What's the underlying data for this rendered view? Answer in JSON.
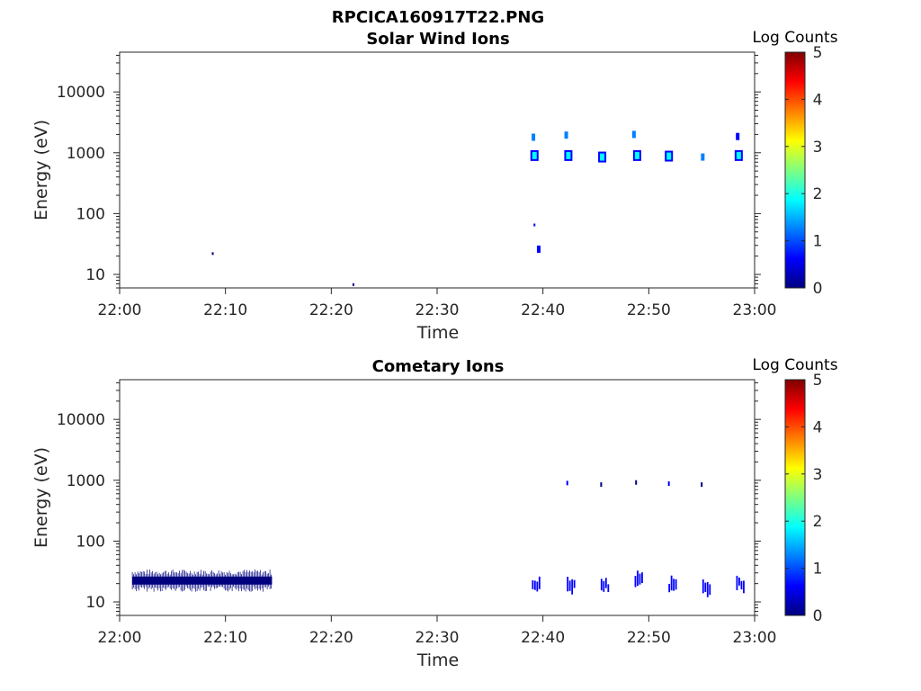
{
  "figure_title": "RPCICA160917T22.PNG",
  "colors": {
    "colormap": [
      "#00007f",
      "#0000ff",
      "#007fff",
      "#00ffff",
      "#7fff7f",
      "#ffff00",
      "#ff7f00",
      "#ff0000",
      "#7f0000"
    ],
    "axes": "#262626"
  },
  "chart_data": [
    {
      "type": "heatmap",
      "title": "Solar Wind Ions",
      "xlabel": "Time",
      "ylabel": "Energy (eV)",
      "xlim": [
        "22:00",
        "23:00"
      ],
      "x_ticks": [
        "22:00",
        "22:10",
        "22:20",
        "22:30",
        "22:40",
        "22:50",
        "23:00"
      ],
      "y_scale": "log",
      "ylim": [
        6,
        45000
      ],
      "y_ticks": [
        "10",
        "100",
        "1000",
        "10000"
      ],
      "colorbar": {
        "title": "Log Counts",
        "range": [
          0,
          5
        ],
        "ticks": [
          "0",
          "1",
          "2",
          "3",
          "4",
          "5"
        ]
      },
      "grid": false,
      "blobs": [
        {
          "t": 22.09,
          "e": 6.8,
          "log_counts": 0.2
        },
        {
          "t": 8.8,
          "e": 22,
          "log_counts": 0.3
        },
        {
          "t": 39.1,
          "e": 1800,
          "log_counts": 1.0
        },
        {
          "t": 39.2,
          "e": 900,
          "log_counts": 1.8
        },
        {
          "t": 39.6,
          "e": 26,
          "log_counts": 0.9
        },
        {
          "t": 39.2,
          "e": 65,
          "log_counts": 0.5
        },
        {
          "t": 42.2,
          "e": 1950,
          "log_counts": 1.0
        },
        {
          "t": 42.4,
          "e": 900,
          "log_counts": 1.8
        },
        {
          "t": 45.6,
          "e": 850,
          "log_counts": 1.6
        },
        {
          "t": 48.6,
          "e": 2000,
          "log_counts": 1.0
        },
        {
          "t": 48.9,
          "e": 900,
          "log_counts": 1.8
        },
        {
          "t": 51.9,
          "e": 880,
          "log_counts": 1.6
        },
        {
          "t": 55.1,
          "e": 850,
          "log_counts": 1.2
        },
        {
          "t": 58.4,
          "e": 1850,
          "log_counts": 0.9
        },
        {
          "t": 58.5,
          "e": 900,
          "log_counts": 1.6
        }
      ]
    },
    {
      "type": "heatmap",
      "title": "Cometary Ions",
      "xlabel": "Time",
      "ylabel": "Energy (eV)",
      "xlim": [
        "22:00",
        "23:00"
      ],
      "x_ticks": [
        "22:00",
        "22:10",
        "22:20",
        "22:30",
        "22:40",
        "22:50",
        "23:00"
      ],
      "y_scale": "log",
      "ylim": [
        6,
        45000
      ],
      "y_ticks": [
        "10",
        "100",
        "1000",
        "10000"
      ],
      "colorbar": {
        "title": "Log Counts",
        "range": [
          0,
          5
        ],
        "ticks": [
          "0",
          "1",
          "2",
          "3",
          "4",
          "5"
        ]
      },
      "grid": false,
      "band": {
        "t_start": 1.2,
        "t_end": 14.4,
        "e_low": 18,
        "e_high": 28,
        "log_counts": 0.3
      },
      "blobs": [
        {
          "t": 39.3,
          "e": 20,
          "log_counts": 0.4
        },
        {
          "t": 42.3,
          "e": 900,
          "log_counts": 0.5
        },
        {
          "t": 42.6,
          "e": 18,
          "log_counts": 0.4
        },
        {
          "t": 45.5,
          "e": 850,
          "log_counts": 0.3
        },
        {
          "t": 45.8,
          "e": 18,
          "log_counts": 0.4
        },
        {
          "t": 48.8,
          "e": 920,
          "log_counts": 0.3
        },
        {
          "t": 49.0,
          "e": 22,
          "log_counts": 0.4
        },
        {
          "t": 51.9,
          "e": 880,
          "log_counts": 0.4
        },
        {
          "t": 52.2,
          "e": 18,
          "log_counts": 0.4
        },
        {
          "t": 55.0,
          "e": 850,
          "log_counts": 0.3
        },
        {
          "t": 55.4,
          "e": 18,
          "log_counts": 0.4
        },
        {
          "t": 58.6,
          "e": 20,
          "log_counts": 0.4
        }
      ]
    }
  ]
}
